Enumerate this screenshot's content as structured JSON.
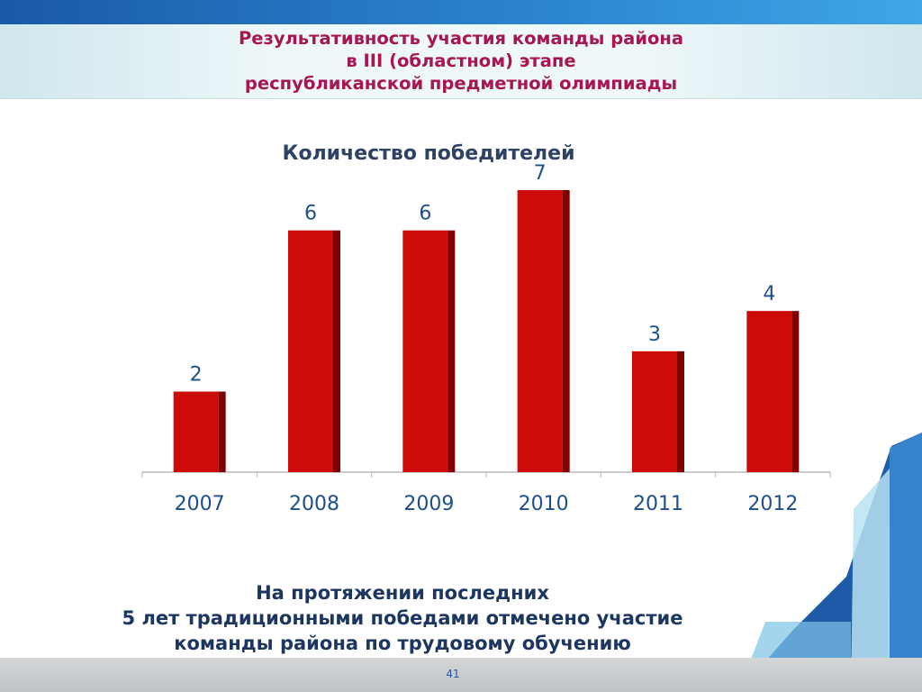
{
  "slide": {
    "title_lines": [
      "Результативность участия команды района",
      "в III (областном) этапе",
      "республиканской предметной олимпиады"
    ],
    "footer_lines": [
      "На протяжении последних",
      "5 лет традиционными победами отмечено участие",
      "команды района по трудовому обучению"
    ],
    "page_number": "41"
  },
  "chart_data": {
    "type": "bar",
    "title": "Количество победителей",
    "categories": [
      "2007",
      "2008",
      "2009",
      "2010",
      "2011",
      "2012"
    ],
    "values": [
      2,
      6,
      6,
      7,
      3,
      4
    ],
    "data_labels": [
      "2",
      "6",
      "6",
      "7",
      "3",
      "4"
    ],
    "xlabel": "",
    "ylabel": "",
    "ylim": [
      0,
      7
    ],
    "grid": false,
    "legend": "none",
    "bar_color": "#cc0a0a",
    "bar_shade_color": "#7e0000"
  },
  "colors": {
    "title": "#a8164f",
    "chart_title": "#2e4265",
    "labels": "#1f4f8a",
    "footer": "#1d3660"
  }
}
